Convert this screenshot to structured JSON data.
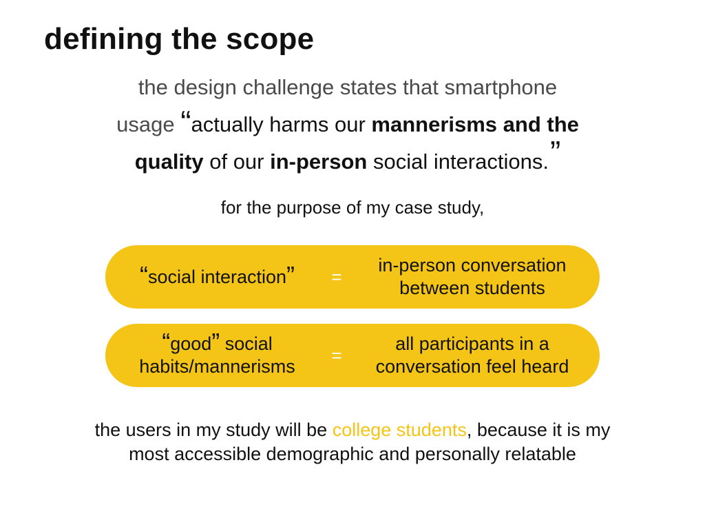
{
  "title": "defining the scope",
  "challenge": {
    "line1": "the design challenge states that smartphone",
    "line2_prefix": "usage ",
    "open_quote": "“",
    "line2_text": "actually harms our ",
    "line2_bold": "mannerisms and the",
    "line3_bold1": "quality",
    "line3_text1": " of our ",
    "line3_bold2": "in-person",
    "line3_text2": " social interactions.",
    "close_quote": "”"
  },
  "purpose": "for the purpose of my case study,",
  "definitions": [
    {
      "term_open_quote": "“",
      "term_text": "social interaction",
      "term_close_quote": "”",
      "equals": "=",
      "definition_line1": "in-person conversation",
      "definition_line2": "between students"
    },
    {
      "term_open_quote": "“",
      "term_text": "good",
      "term_close_quote": "”",
      "term_suffix": " social",
      "term_line2": "habits/mannerisms",
      "equals": "=",
      "definition_line1": "all participants in a",
      "definition_line2": "conversation feel heard"
    }
  ],
  "footer": {
    "line1_prefix": "the users in my study will be ",
    "line1_highlight": "college students",
    "line1_suffix": ", because it is my",
    "line2": "most accessible demographic and personally relatable"
  },
  "colors": {
    "accent": "#f4c516",
    "text": "#111111",
    "light_text": "#4a4a4a"
  }
}
